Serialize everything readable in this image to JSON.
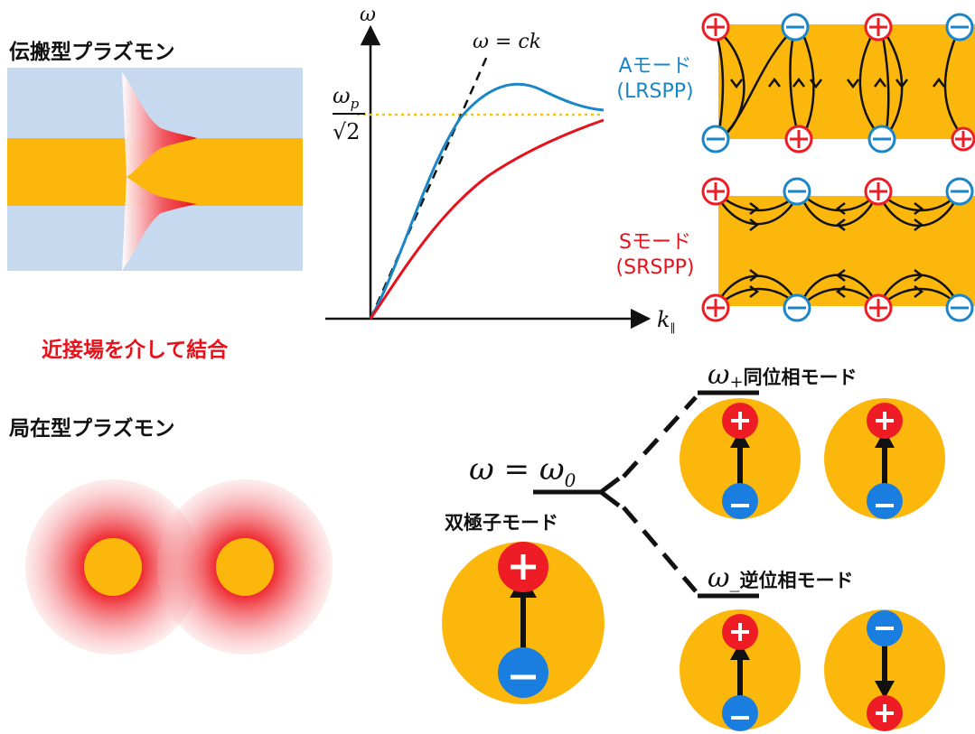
{
  "headings": {
    "propagating": "伝搬型プラズモン",
    "coupling": "近接場を介して結合",
    "localized": "局在型プラズモン"
  },
  "dispersion": {
    "y_axis": "ω",
    "x_axis": "k",
    "x_axis_subscript": "∥",
    "light_line": "ω = ck",
    "plasma_num": "ω",
    "plasma_num_sub": "p",
    "plasma_den": "√2"
  },
  "a_mode": {
    "label": "Aモード",
    "sub": "(LRSPP)",
    "color": "#1a86c8"
  },
  "s_mode": {
    "label": "Sモード",
    "sub": "(SRSPP)",
    "color": "#e8101a"
  },
  "localized_modes": {
    "base_eq": "ω = ω",
    "base_sub": "0",
    "dipole_label": "双極子モード",
    "plus_symbol": "ω",
    "plus_sub": "+",
    "plus_label": "同位相モード",
    "minus_symbol": "ω",
    "minus_sub": "_",
    "minus_label": "逆位相モード"
  },
  "colors": {
    "metal": "#fbb70b",
    "dielectric": "#c7d9ee",
    "field": "#ee1c24",
    "positive": "#ee1c24",
    "negative": "#1a7ee0",
    "plasma_line": "#f5c400"
  }
}
